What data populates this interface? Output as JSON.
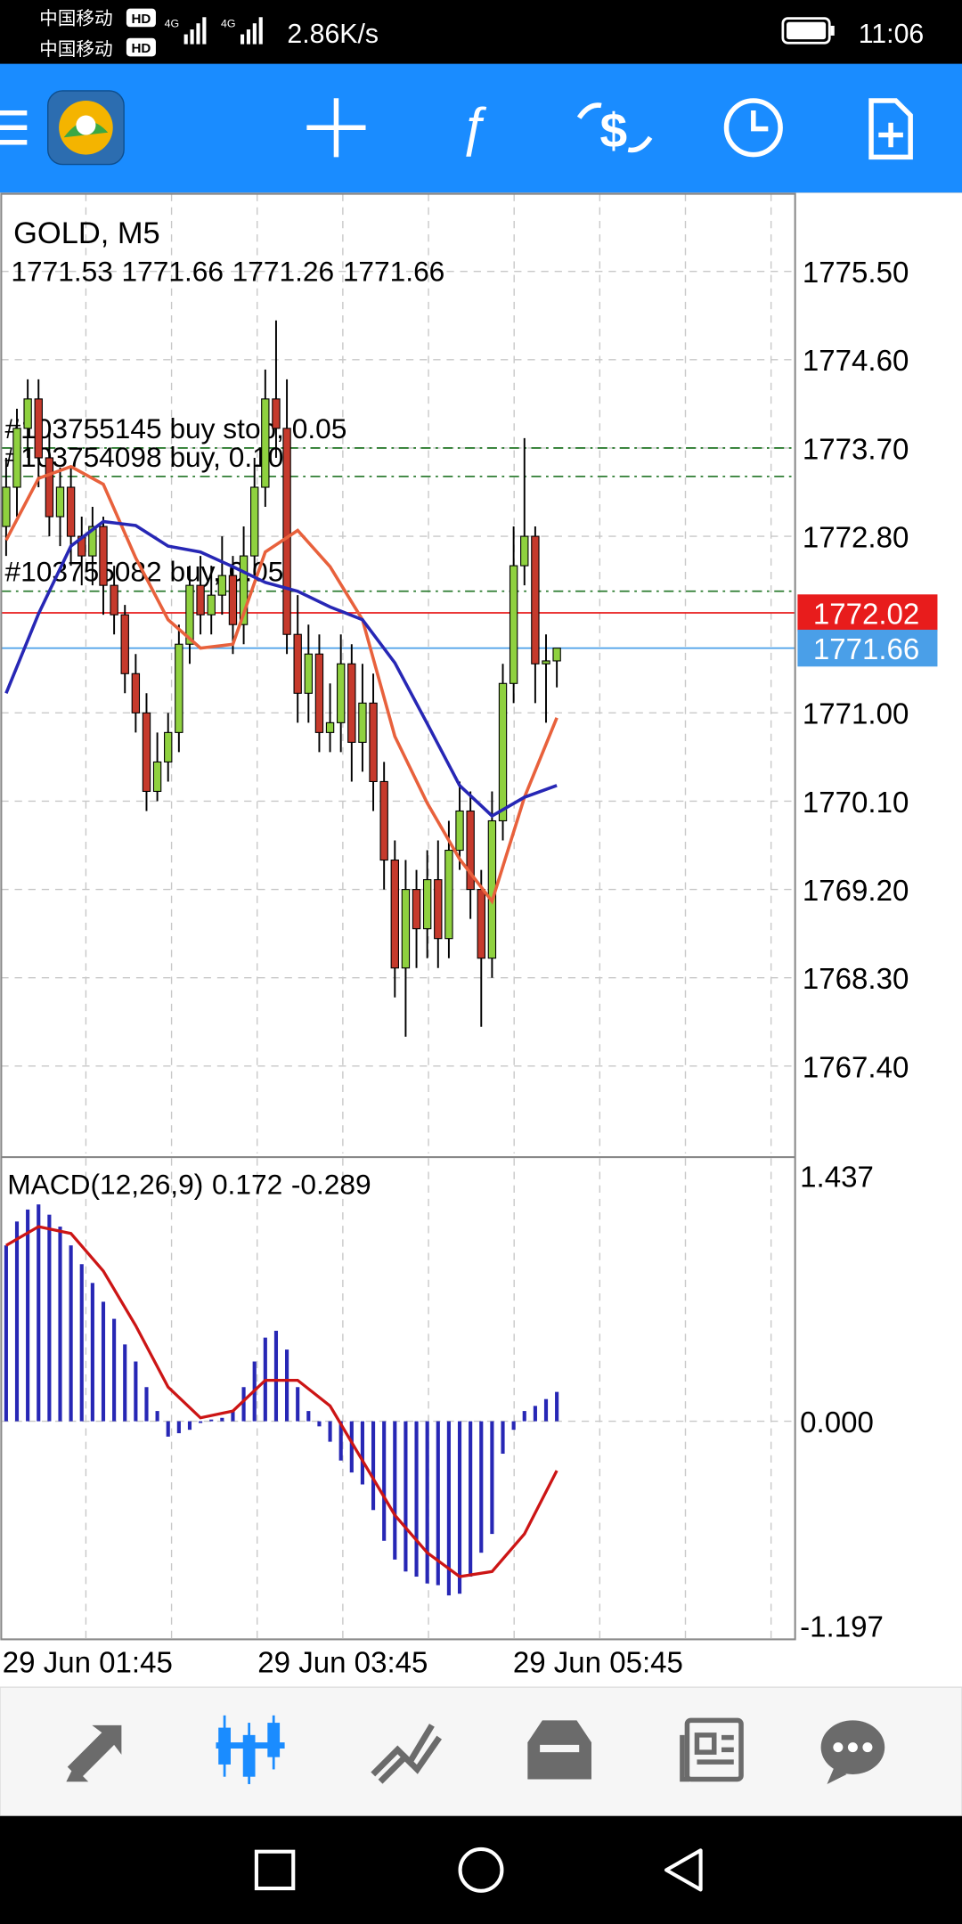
{
  "status_bar": {
    "carrier_1": "中国移动",
    "carrier_2": "中国移动",
    "badge": "HD",
    "network": "4G",
    "net_speed": "2.86K/s",
    "time": "11:06"
  },
  "chart_data": [
    {
      "type": "candlestick",
      "title": "GOLD, M5",
      "up_color": "#8fd13f",
      "down_color": "#c63a2c",
      "ohlc": [
        [
          1772.9,
          1773.6,
          1772.6,
          1773.3
        ],
        [
          1773.3,
          1774.1,
          1773.0,
          1773.9
        ],
        [
          1773.9,
          1774.4,
          1773.6,
          1774.2
        ],
        [
          1774.2,
          1774.4,
          1773.3,
          1773.6
        ],
        [
          1773.6,
          1773.9,
          1772.8,
          1773.0
        ],
        [
          1773.0,
          1773.5,
          1772.7,
          1773.3
        ],
        [
          1773.3,
          1773.5,
          1772.5,
          1772.8
        ],
        [
          1772.8,
          1773.0,
          1772.3,
          1772.6
        ],
        [
          1772.6,
          1773.1,
          1772.3,
          1772.9
        ],
        [
          1772.9,
          1773.0,
          1772.0,
          1772.3
        ],
        [
          1772.3,
          1772.5,
          1771.8,
          1772.0
        ],
        [
          1772.0,
          1772.1,
          1771.2,
          1771.4
        ],
        [
          1771.4,
          1771.6,
          1770.8,
          1771.0
        ],
        [
          1771.0,
          1771.2,
          1770.0,
          1770.2
        ],
        [
          1770.2,
          1770.8,
          1770.1,
          1770.5
        ],
        [
          1770.5,
          1771.0,
          1770.3,
          1770.8
        ],
        [
          1770.8,
          1771.9,
          1770.6,
          1771.7
        ],
        [
          1771.7,
          1772.5,
          1771.5,
          1772.3
        ],
        [
          1772.3,
          1772.6,
          1771.8,
          1772.0
        ],
        [
          1772.0,
          1772.5,
          1771.8,
          1772.2
        ],
        [
          1772.2,
          1772.8,
          1772.0,
          1772.4
        ],
        [
          1772.4,
          1772.6,
          1771.6,
          1771.9
        ],
        [
          1771.9,
          1772.9,
          1771.7,
          1772.6
        ],
        [
          1772.6,
          1773.6,
          1772.4,
          1773.3
        ],
        [
          1773.3,
          1774.5,
          1773.1,
          1774.2
        ],
        [
          1774.2,
          1775.0,
          1773.6,
          1773.9
        ],
        [
          1773.9,
          1774.4,
          1771.6,
          1771.8
        ],
        [
          1771.8,
          1772.2,
          1770.9,
          1771.2
        ],
        [
          1771.2,
          1771.9,
          1770.9,
          1771.6
        ],
        [
          1771.6,
          1771.8,
          1770.6,
          1770.8
        ],
        [
          1770.8,
          1771.3,
          1770.6,
          1770.9
        ],
        [
          1770.9,
          1771.8,
          1770.6,
          1771.5
        ],
        [
          1771.5,
          1771.7,
          1770.3,
          1770.7
        ],
        [
          1770.7,
          1771.5,
          1770.4,
          1771.1
        ],
        [
          1771.1,
          1771.4,
          1770.0,
          1770.3
        ],
        [
          1770.3,
          1770.5,
          1769.2,
          1769.5
        ],
        [
          1769.5,
          1769.7,
          1768.1,
          1768.4
        ],
        [
          1768.4,
          1769.5,
          1767.7,
          1769.2
        ],
        [
          1769.2,
          1769.4,
          1768.4,
          1768.8
        ],
        [
          1768.8,
          1769.6,
          1768.5,
          1769.3
        ],
        [
          1769.3,
          1769.7,
          1768.4,
          1768.7
        ],
        [
          1768.7,
          1769.9,
          1768.5,
          1769.6
        ],
        [
          1769.6,
          1770.3,
          1769.4,
          1770.0
        ],
        [
          1770.0,
          1770.2,
          1768.9,
          1769.2
        ],
        [
          1769.2,
          1769.4,
          1767.8,
          1768.5
        ],
        [
          1768.5,
          1770.2,
          1768.3,
          1769.9
        ],
        [
          1769.9,
          1771.5,
          1769.7,
          1771.3
        ],
        [
          1771.3,
          1772.9,
          1771.1,
          1772.5
        ],
        [
          1772.5,
          1773.8,
          1772.3,
          1772.8
        ],
        [
          1772.8,
          1772.9,
          1771.1,
          1771.5
        ],
        [
          1771.5,
          1771.8,
          1770.9,
          1771.53
        ],
        [
          1771.53,
          1771.66,
          1771.26,
          1771.66
        ]
      ],
      "moving_averages": [
        {
          "color": "#e8613c",
          "x": [
            0,
            3,
            6,
            9,
            12,
            15,
            18,
            21,
            24,
            27,
            30,
            33,
            36,
            39,
            42,
            45,
            48,
            51
          ],
          "values": [
            1772.76,
            1773.39,
            1773.51,
            1773.33,
            1772.58,
            1771.95,
            1771.66,
            1771.7,
            1772.64,
            1772.86,
            1772.49,
            1771.95,
            1770.76,
            1770.08,
            1769.51,
            1769.08,
            1770.14,
            1770.95
          ]
        },
        {
          "color": "#2727b5",
          "x": [
            0,
            3,
            6,
            9,
            12,
            15,
            18,
            21,
            24,
            27,
            30,
            33,
            36,
            39,
            42,
            45,
            48,
            51
          ],
          "values": [
            1771.2,
            1772.01,
            1772.7,
            1772.95,
            1772.91,
            1772.7,
            1772.64,
            1772.49,
            1772.33,
            1772.24,
            1772.08,
            1771.95,
            1771.51,
            1770.89,
            1770.26,
            1769.95,
            1770.14,
            1770.26
          ]
        }
      ],
      "levels": [
        {
          "label": "#103755145 buy stop, 0.05",
          "value": 1773.7,
          "color": "#2e7d32"
        },
        {
          "label": "#103754098 buy, 0.10",
          "value": 1773.41,
          "color": "#2e7d32"
        },
        {
          "label": "#103755082 buy, 0.05",
          "value": 1772.24,
          "color": "#2e7d32"
        }
      ],
      "price_lines": [
        {
          "value": 1772.02,
          "color": "#e81c1c"
        },
        {
          "value": 1771.66,
          "color": "#4a9fe8"
        }
      ],
      "ylim": [
        1766.51,
        1776.29
      ],
      "yticks": [
        {
          "value": 1775.5,
          "label": "1775.50"
        },
        {
          "value": 1774.6,
          "label": "1774.60"
        },
        {
          "value": 1773.7,
          "label": "1773.70"
        },
        {
          "value": 1772.8,
          "label": "1772.80"
        },
        {
          "value": 1771,
          "label": "1771.00"
        },
        {
          "value": 1770.1,
          "label": "1770.10"
        },
        {
          "value": 1769.2,
          "label": "1769.20"
        },
        {
          "value": 1768.3,
          "label": "1768.30"
        },
        {
          "value": 1767.4,
          "label": "1767.40"
        }
      ],
      "xticks": [
        "29 Jun 01:45",
        "29 Jun 03:45",
        "29 Jun 05:45"
      ],
      "grid": true
    },
    {
      "type": "bar",
      "title": "MACD(12,26,9)",
      "macd_value": 0.172,
      "signal_value": -0.289,
      "color": "#2727b5",
      "values": [
        1.03,
        1.17,
        1.24,
        1.27,
        1.21,
        1.14,
        1.03,
        0.92,
        0.81,
        0.7,
        0.6,
        0.45,
        0.35,
        0.2,
        0.06,
        -0.09,
        -0.07,
        -0.05,
        -0.01,
        0.01,
        0.02,
        0.06,
        0.2,
        0.35,
        0.49,
        0.53,
        0.42,
        0.2,
        0.06,
        -0.03,
        -0.12,
        -0.23,
        -0.3,
        -0.37,
        -0.52,
        -0.7,
        -0.81,
        -0.88,
        -0.91,
        -0.95,
        -0.96,
        -1.02,
        -1.01,
        -0.91,
        -0.77,
        -0.66,
        -0.19,
        -0.05,
        0.06,
        0.09,
        0.13,
        0.172
      ],
      "signal": {
        "color": "#cc1515",
        "x": [
          0,
          3,
          6,
          9,
          12,
          15,
          18,
          21,
          24,
          27,
          30,
          33,
          36,
          39,
          42,
          45,
          48,
          51
        ],
        "values": [
          1.03,
          1.14,
          1.1,
          0.88,
          0.56,
          0.2,
          0.02,
          0.06,
          0.24,
          0.24,
          0.09,
          -0.23,
          -0.55,
          -0.77,
          -0.91,
          -0.88,
          -0.66,
          -0.289
        ]
      },
      "ylim": [
        -1.27,
        1.54
      ],
      "yticks": [
        1.437,
        {
          "value": 0,
          "label": "0.000"
        },
        -1.197
      ],
      "grid": true
    }
  ]
}
